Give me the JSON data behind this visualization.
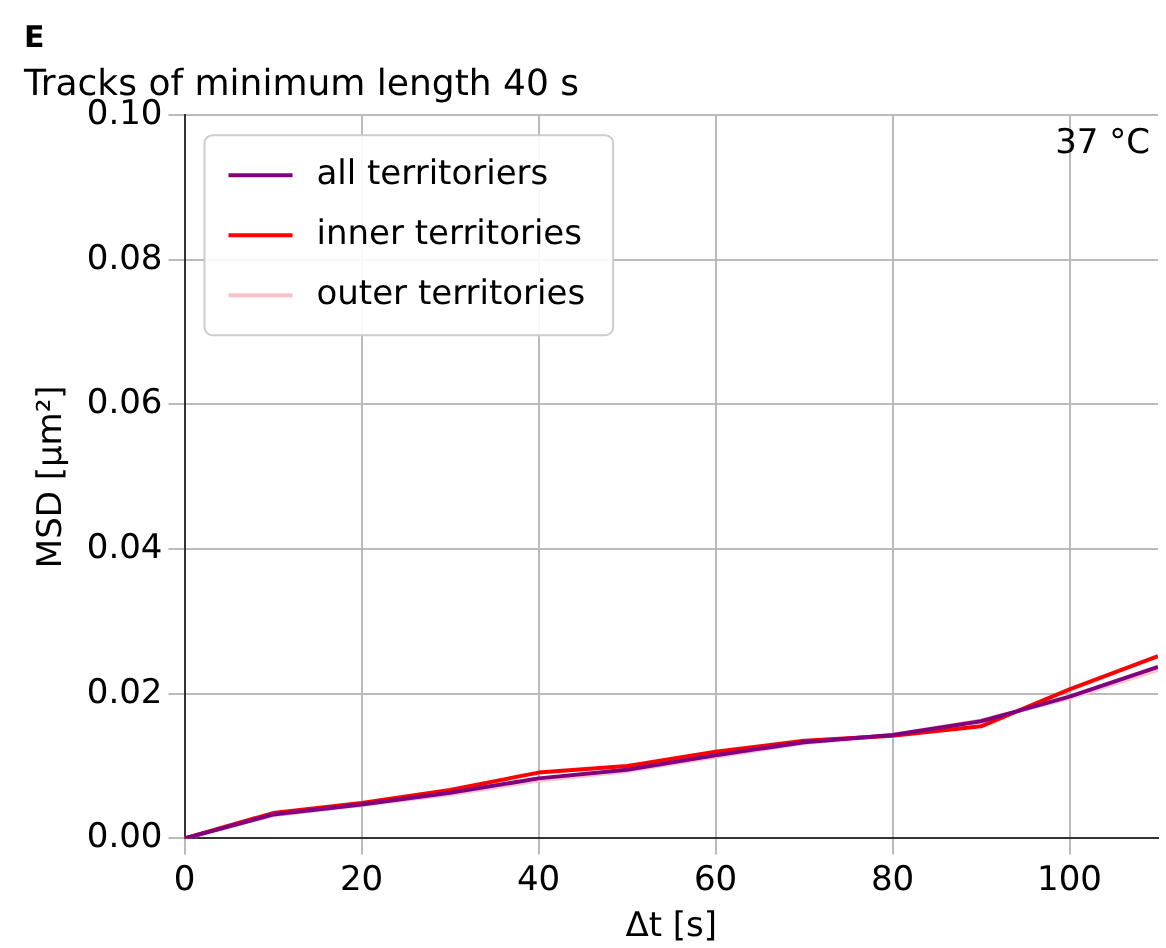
{
  "chart_data": {
    "type": "line",
    "title": "Tracks of minimum length 40 s",
    "xlabel": "Δt [s]",
    "ylabel": "MSD [µm²]",
    "annotations": [
      "E",
      "37 °C"
    ],
    "x": [
      0,
      10,
      20,
      30,
      40,
      50,
      60,
      70,
      80,
      90,
      100,
      110
    ],
    "series": [
      {
        "name": "all territoriers",
        "color": "#800080",
        "values": [
          0,
          0.0033,
          0.0047,
          0.0063,
          0.0083,
          0.0095,
          0.0115,
          0.0133,
          0.0143,
          0.0162,
          0.0196,
          0.0237
        ]
      },
      {
        "name": "inner territories",
        "color": "#ff0000",
        "values": [
          0,
          0.0035,
          0.0049,
          0.0067,
          0.0091,
          0.01,
          0.012,
          0.0135,
          0.0142,
          0.0155,
          0.0206,
          0.0252
        ]
      },
      {
        "name": "outer territories",
        "color": "#ffc0cb",
        "values": [
          0,
          0.0032,
          0.0046,
          0.0061,
          0.008,
          0.0093,
          0.0113,
          0.0132,
          0.0143,
          0.0163,
          0.0194,
          0.0233
        ]
      }
    ],
    "xlim": [
      0,
      110
    ],
    "xticks": [
      0,
      20,
      40,
      60,
      80,
      100
    ],
    "ylim": [
      0,
      0.1
    ],
    "yticks": [
      {
        "value": 0,
        "label": "0.00"
      },
      {
        "value": 0.02,
        "label": "0.02"
      },
      {
        "value": 0.04,
        "label": "0.04"
      },
      {
        "value": 0.06,
        "label": "0.06"
      },
      {
        "value": 0.08,
        "label": "0.08"
      },
      {
        "value": 0.1,
        "label": "0.10"
      }
    ],
    "grid": true,
    "legend": "top left",
    "marker": "none",
    "line_style": "solid"
  }
}
